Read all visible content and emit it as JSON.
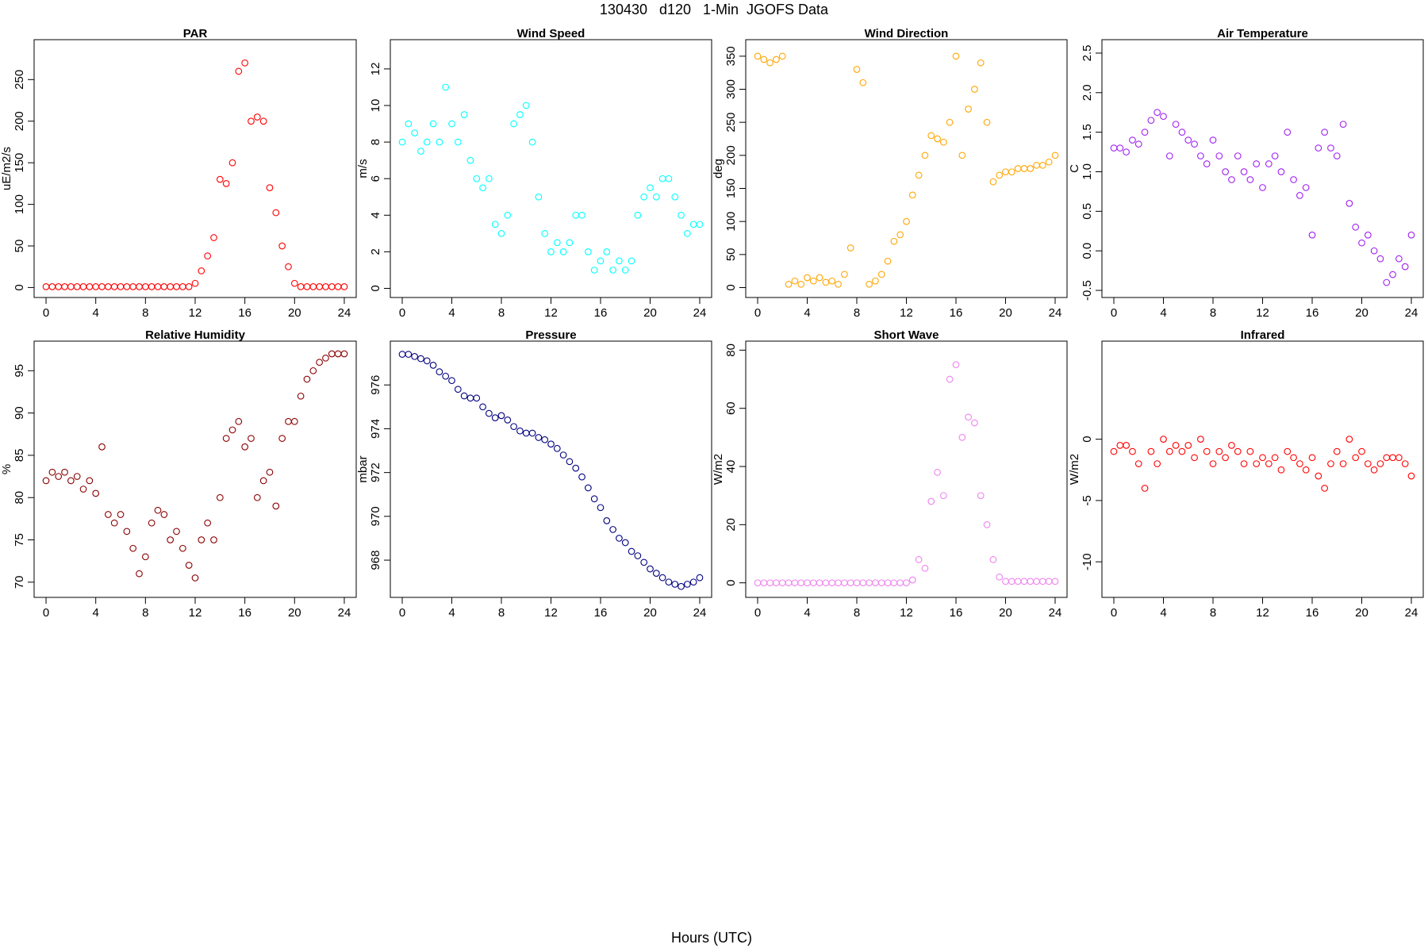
{
  "title": "130430   d120   1-Min  JGOFS Data",
  "xlabel": "Hours (UTC)",
  "chart_data": [
    {
      "type": "scatter",
      "title": "PAR",
      "ylabel": "uE/m2/s",
      "color": "#ff0000",
      "x": [
        0,
        0.5,
        1,
        1.5,
        2,
        2.5,
        3,
        3.5,
        4,
        4.5,
        5,
        5.5,
        6,
        6.5,
        7,
        7.5,
        8,
        8.5,
        9,
        9.5,
        10,
        10.5,
        11,
        11.5,
        12,
        12.5,
        13,
        13.5,
        14,
        14.5,
        15,
        15.5,
        16,
        16.5,
        17,
        17.5,
        18,
        18.5,
        19,
        19.5,
        20,
        20.5,
        21,
        21.5,
        22,
        22.5,
        23,
        23.5,
        24
      ],
      "values": [
        1,
        1,
        1,
        1,
        1,
        1,
        1,
        1,
        1,
        1,
        1,
        1,
        1,
        1,
        1,
        1,
        1,
        1,
        1,
        1,
        1,
        1,
        1,
        1,
        5,
        20,
        38,
        60,
        130,
        125,
        150,
        260,
        270,
        200,
        205,
        200,
        120,
        90,
        50,
        25,
        5,
        1,
        1,
        1,
        1,
        1,
        1,
        1,
        1
      ],
      "xlim": [
        -0.96,
        24.96
      ],
      "ylim": [
        -12,
        298
      ],
      "xticks": [
        0,
        4,
        8,
        12,
        16,
        20,
        24
      ],
      "yticks": [
        0,
        50,
        100,
        150,
        200,
        250
      ]
    },
    {
      "type": "scatter",
      "title": "Wind Speed",
      "ylabel": "m/s",
      "color": "#00ffff",
      "x": [
        0,
        0.5,
        1,
        1.5,
        2,
        2.5,
        3,
        3.5,
        4,
        4.5,
        5,
        5.5,
        6,
        6.5,
        7,
        7.5,
        8,
        8.5,
        9,
        9.5,
        10,
        10.5,
        11,
        11.5,
        12,
        12.5,
        13,
        13.5,
        14,
        14.5,
        15,
        15.5,
        16,
        16.5,
        17,
        17.5,
        18,
        18.5,
        19,
        19.5,
        20,
        20.5,
        21,
        21.5,
        22,
        22.5,
        23,
        23.5,
        24
      ],
      "values": [
        8,
        9,
        8.5,
        7.5,
        8,
        9,
        8,
        11,
        9,
        8,
        9.5,
        7,
        6,
        5.5,
        6,
        3.5,
        3,
        4,
        9,
        9.5,
        10,
        8,
        5,
        3,
        2,
        2.5,
        2,
        2.5,
        4,
        4,
        2,
        1,
        1.5,
        2,
        1,
        1.5,
        1,
        1.5,
        4,
        5,
        5.5,
        5,
        6,
        6,
        5,
        4,
        3,
        3.5,
        3.5
      ],
      "xlim": [
        -0.96,
        24.96
      ],
      "ylim": [
        -0.5,
        13.6
      ],
      "xticks": [
        0,
        4,
        8,
        12,
        16,
        20,
        24
      ],
      "yticks": [
        0,
        2,
        4,
        6,
        8,
        10,
        12
      ]
    },
    {
      "type": "scatter",
      "title": "Wind Direction",
      "ylabel": "deg",
      "color": "#ffa500",
      "x": [
        0,
        0.5,
        1,
        1.5,
        2,
        2.5,
        3,
        3.5,
        4,
        4.5,
        5,
        5.5,
        6,
        6.5,
        7,
        7.5,
        8,
        8.5,
        9,
        9.5,
        10,
        10.5,
        11,
        11.5,
        12,
        12.5,
        13,
        13.5,
        14,
        14.5,
        15,
        15.5,
        16,
        16.5,
        17,
        17.5,
        18,
        18.5,
        19,
        19.5,
        20,
        20.5,
        21,
        21.5,
        22,
        22.5,
        23,
        23.5,
        24
      ],
      "values": [
        350,
        345,
        340,
        345,
        350,
        5,
        10,
        5,
        15,
        10,
        15,
        8,
        10,
        5,
        20,
        60,
        330,
        310,
        5,
        10,
        20,
        40,
        70,
        80,
        100,
        140,
        170,
        200,
        230,
        225,
        220,
        250,
        350,
        200,
        270,
        300,
        340,
        250,
        160,
        170,
        175,
        175,
        180,
        180,
        180,
        185,
        185,
        190,
        200
      ],
      "xlim": [
        -0.96,
        24.96
      ],
      "ylim": [
        -15,
        375
      ],
      "xticks": [
        0,
        4,
        8,
        12,
        16,
        20,
        24
      ],
      "yticks": [
        0,
        50,
        100,
        150,
        200,
        250,
        300,
        350
      ]
    },
    {
      "type": "scatter",
      "title": "Air Temperature",
      "ylabel": "C",
      "color": "#a020f0",
      "x": [
        0,
        0.5,
        1,
        1.5,
        2,
        2.5,
        3,
        3.5,
        4,
        4.5,
        5,
        5.5,
        6,
        6.5,
        7,
        7.5,
        8,
        8.5,
        9,
        9.5,
        10,
        10.5,
        11,
        11.5,
        12,
        12.5,
        13,
        13.5,
        14,
        14.5,
        15,
        15.5,
        16,
        16.5,
        17,
        17.5,
        18,
        18.5,
        19,
        19.5,
        20,
        20.5,
        21,
        21.5,
        22,
        22.5,
        23,
        23.5,
        24
      ],
      "values": [
        1.3,
        1.3,
        1.25,
        1.4,
        1.35,
        1.5,
        1.65,
        1.75,
        1.7,
        1.2,
        1.6,
        1.5,
        1.4,
        1.35,
        1.2,
        1.1,
        1.4,
        1.2,
        1.0,
        0.9,
        1.2,
        1.0,
        0.9,
        1.1,
        0.8,
        1.1,
        1.2,
        1.0,
        1.5,
        0.9,
        0.7,
        0.8,
        0.2,
        1.3,
        1.5,
        1.3,
        1.2,
        1.6,
        0.6,
        0.3,
        0.1,
        0.2,
        0.0,
        -0.1,
        -0.4,
        -0.3,
        -0.1,
        -0.2,
        0.2
      ],
      "xlim": [
        -0.96,
        24.96
      ],
      "ylim": [
        -0.59,
        2.67
      ],
      "xticks": [
        0,
        4,
        8,
        12,
        16,
        20,
        24
      ],
      "yticks": [
        -0.5,
        {
          "value": 0,
          "label": "0.0"
        },
        0.5,
        {
          "value": 1,
          "label": "1.0"
        },
        1.5,
        {
          "value": 2,
          "label": "2.0"
        },
        2.5
      ]
    },
    {
      "type": "scatter",
      "title": "Relative Humidity",
      "ylabel": "%",
      "color": "#8b0000",
      "x": [
        0,
        0.5,
        1,
        1.5,
        2,
        2.5,
        3,
        3.5,
        4,
        4.5,
        5,
        5.5,
        6,
        6.5,
        7,
        7.5,
        8,
        8.5,
        9,
        9.5,
        10,
        10.5,
        11,
        11.5,
        12,
        12.5,
        13,
        13.5,
        14,
        14.5,
        15,
        15.5,
        16,
        16.5,
        17,
        17.5,
        18,
        18.5,
        19,
        19.5,
        20,
        20.5,
        21,
        21.5,
        22,
        22.5,
        23,
        23.5,
        24
      ],
      "values": [
        82,
        83,
        82.5,
        83,
        82,
        82.5,
        81,
        82,
        80.5,
        86,
        78,
        77,
        78,
        76,
        74,
        71,
        73,
        77,
        78.5,
        78,
        75,
        76,
        74,
        72,
        70.5,
        75,
        77,
        75,
        80,
        87,
        88,
        89,
        86,
        87,
        80,
        82,
        83,
        79,
        87,
        89,
        89,
        92,
        94,
        95,
        96,
        96.5,
        97,
        97,
        97
      ],
      "xlim": [
        -0.96,
        24.96
      ],
      "ylim": [
        68.2,
        98.5
      ],
      "xticks": [
        0,
        4,
        8,
        12,
        16,
        20,
        24
      ],
      "yticks": [
        70,
        75,
        80,
        85,
        90,
        95
      ]
    },
    {
      "type": "scatter",
      "title": "Pressure",
      "ylabel": "mbar",
      "color": "#000080",
      "x": [
        0,
        0.5,
        1,
        1.5,
        2,
        2.5,
        3,
        3.5,
        4,
        4.5,
        5,
        5.5,
        6,
        6.5,
        7,
        7.5,
        8,
        8.5,
        9,
        9.5,
        10,
        10.5,
        11,
        11.5,
        12,
        12.5,
        13,
        13.5,
        14,
        14.5,
        15,
        15.5,
        16,
        16.5,
        17,
        17.5,
        18,
        18.5,
        19,
        19.5,
        20,
        20.5,
        21,
        21.5,
        22,
        22.5,
        23,
        23.5,
        24
      ],
      "values": [
        977.4,
        977.4,
        977.3,
        977.2,
        977.1,
        976.9,
        976.6,
        976.4,
        976.2,
        975.8,
        975.5,
        975.4,
        975.4,
        975.0,
        974.7,
        974.5,
        974.6,
        974.4,
        974.1,
        973.9,
        973.8,
        973.8,
        973.6,
        973.5,
        973.3,
        973.1,
        972.8,
        972.5,
        972.2,
        971.8,
        971.3,
        970.8,
        970.4,
        969.8,
        969.4,
        969.0,
        968.8,
        968.4,
        968.2,
        967.9,
        967.6,
        967.4,
        967.2,
        967.0,
        966.9,
        966.8,
        966.9,
        967.0,
        967.2
      ],
      "xlim": [
        -0.96,
        24.96
      ],
      "ylim": [
        966.3,
        978.0
      ],
      "xticks": [
        0,
        4,
        8,
        12,
        16,
        20,
        24
      ],
      "yticks": [
        968,
        970,
        972,
        974,
        976
      ]
    },
    {
      "type": "scatter",
      "title": "Short Wave",
      "ylabel": "W/m2",
      "color": "#ee82ee",
      "x": [
        0,
        0.5,
        1,
        1.5,
        2,
        2.5,
        3,
        3.5,
        4,
        4.5,
        5,
        5.5,
        6,
        6.5,
        7,
        7.5,
        8,
        8.5,
        9,
        9.5,
        10,
        10.5,
        11,
        11.5,
        12,
        12.5,
        13,
        13.5,
        14,
        14.5,
        15,
        15.5,
        16,
        16.5,
        17,
        17.5,
        18,
        18.5,
        19,
        19.5,
        20,
        20.5,
        21,
        21.5,
        22,
        22.5,
        23,
        23.5,
        24
      ],
      "values": [
        0,
        0,
        0,
        0,
        0,
        0,
        0,
        0,
        0,
        0,
        0,
        0,
        0,
        0,
        0,
        0,
        0,
        0,
        0,
        0,
        0,
        0,
        0,
        0,
        0,
        1,
        8,
        5,
        28,
        38,
        30,
        70,
        75,
        50,
        57,
        55,
        30,
        20,
        8,
        2,
        0.5,
        0.5,
        0.5,
        0.5,
        0.5,
        0.5,
        0.5,
        0.5,
        0.5
      ],
      "xlim": [
        -0.96,
        24.96
      ],
      "ylim": [
        -5,
        83.1
      ],
      "xticks": [
        0,
        4,
        8,
        12,
        16,
        20,
        24
      ],
      "yticks": [
        0,
        20,
        40,
        60,
        80
      ]
    },
    {
      "type": "scatter",
      "title": "Infrared",
      "ylabel": "W/m2",
      "color": "#ff0000",
      "x": [
        0,
        0.5,
        1,
        1.5,
        2,
        2.5,
        3,
        3.5,
        4,
        4.5,
        5,
        5.5,
        6,
        6.5,
        7,
        7.5,
        8,
        8.5,
        9,
        9.5,
        10,
        10.5,
        11,
        11.5,
        12,
        12.5,
        13,
        13.5,
        14,
        14.5,
        15,
        15.5,
        16,
        16.5,
        17,
        17.5,
        18,
        18.5,
        19,
        19.5,
        20,
        20.5,
        21,
        21.5,
        22,
        22.5,
        23,
        23.5,
        24
      ],
      "values": [
        -1,
        -0.5,
        -0.5,
        -1,
        -2,
        -4,
        -1,
        -2,
        0,
        -1,
        -0.5,
        -1,
        -0.5,
        -1.5,
        0,
        -1,
        -2,
        -1,
        -1.5,
        -0.5,
        -1,
        -2,
        -1,
        -2,
        -1.5,
        -2,
        -1.5,
        -2.5,
        -1,
        -1.5,
        -2,
        -2.5,
        -1.5,
        -3,
        -4,
        -2,
        -1,
        -2,
        0,
        -1.5,
        -1,
        -2,
        -2.5,
        -2,
        -1.5,
        -1.5,
        -1.5,
        -2,
        -3
      ],
      "xlim": [
        -0.96,
        24.96
      ],
      "ylim": [
        -12.9,
        8.0
      ],
      "xticks": [
        0,
        4,
        8,
        12,
        16,
        20,
        24
      ],
      "yticks": [
        -10,
        -5,
        0
      ]
    }
  ]
}
